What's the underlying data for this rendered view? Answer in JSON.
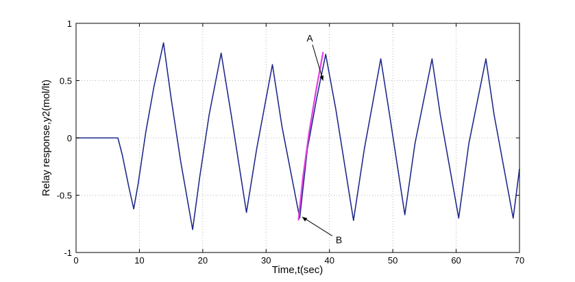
{
  "chart_data": {
    "type": "line",
    "title": "",
    "xlabel": "Time,t(sec)",
    "ylabel": "Relay response,y2(mol/lt)",
    "xlim": [
      0,
      70
    ],
    "ylim": [
      -1,
      1
    ],
    "xticks": [
      0,
      10,
      20,
      30,
      40,
      50,
      60,
      70
    ],
    "xtick_labels": [
      "0",
      "10",
      "20",
      "30",
      "40",
      "50",
      "60",
      "70"
    ],
    "yticks": [
      -1,
      -0.5,
      0,
      0.5,
      1
    ],
    "ytick_labels": [
      "-1",
      "-0.5",
      "0",
      "0.5",
      "1"
    ],
    "grid": true,
    "series": [
      {
        "color": "#1f2a8a",
        "x": [
          0,
          6.6,
          7.3,
          8.3,
          9.1,
          9.8,
          11.0,
          12.3,
          13.8,
          15.0,
          16.5,
          18.4,
          19.5,
          21.0,
          22.9,
          24.5,
          26.9,
          28.5,
          31.0,
          32.5,
          35.3,
          36.5,
          38.0,
          39.4,
          41.0,
          43.8,
          45.5,
          48.1,
          49.5,
          51.9,
          53.5,
          56.2,
          57.5,
          60.4,
          62.0,
          64.7,
          66.0,
          69.0,
          70.0
        ],
        "y": [
          0,
          0,
          -0.15,
          -0.42,
          -0.62,
          -0.4,
          0.05,
          0.45,
          0.83,
          0.35,
          -0.2,
          -0.8,
          -0.35,
          0.2,
          0.74,
          0.2,
          -0.65,
          -0.1,
          0.64,
          0.1,
          -0.7,
          -0.1,
          0.35,
          0.73,
          0.25,
          -0.72,
          -0.1,
          0.69,
          0.2,
          -0.67,
          -0.05,
          0.69,
          0.2,
          -0.7,
          -0.05,
          0.69,
          0.2,
          -0.7,
          -0.27
        ]
      },
      {
        "color": "#e040e0",
        "x": [
          35.1,
          35.8,
          36.8,
          37.9,
          39.0
        ],
        "y": [
          -0.72,
          -0.35,
          0.05,
          0.42,
          0.75
        ]
      }
    ],
    "annotations": [
      {
        "text": "A",
        "x": 36.9,
        "y": 0.84,
        "arrow_to": [
          39.0,
          0.5
        ]
      },
      {
        "text": "B",
        "x": 41.5,
        "y": -0.92,
        "arrow_to": [
          35.7,
          -0.69
        ]
      }
    ]
  }
}
